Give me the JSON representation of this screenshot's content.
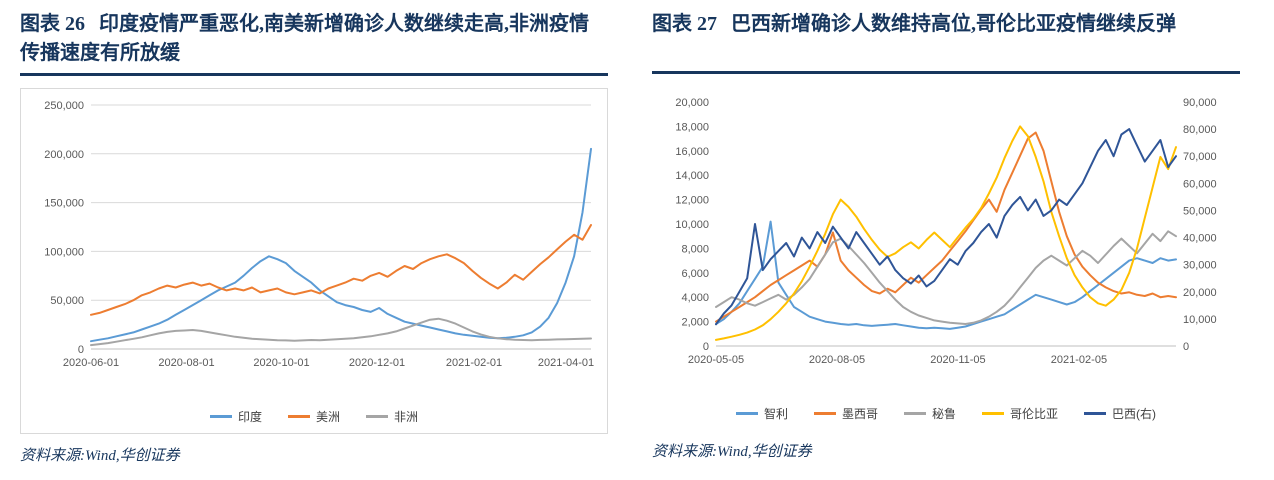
{
  "page": {
    "background": "#FFFFFF",
    "brand_color": "#17365D"
  },
  "panels": [
    {
      "figure_label": "图表 26",
      "title": "印度疫情严重恶化,南美新增确诊人数继续走高,非洲疫情传播速度有所放缓",
      "source": "资料来源:Wind,华创证券"
    },
    {
      "figure_label": "图表 27",
      "title": "巴西新增确诊人数维持高位,哥伦比亚疫情继续反弹",
      "source": "资料来源:Wind,华创证券"
    }
  ],
  "chart_data": [
    {
      "type": "line",
      "title": "图表 26 印度疫情严重恶化,南美新增确诊人数继续走高,非洲疫情传播速度有所放缓",
      "grid": true,
      "legend_position": "bottom",
      "ylim": [
        0,
        250000
      ],
      "y_ticks": [
        "0",
        "50,000",
        "100,000",
        "150,000",
        "200,000",
        "250,000"
      ],
      "x_ticks": [
        "2020-06-01",
        "2020-08-01",
        "2020-10-01",
        "2020-12-01",
        "2021-02-01",
        "2021-04-01"
      ],
      "x_tick_pos": [
        0,
        0.191,
        0.381,
        0.572,
        0.766,
        0.95
      ],
      "series": [
        {
          "name": "印度",
          "color": "#5B9BD5",
          "axis": "left",
          "values": [
            8000,
            9500,
            11000,
            13000,
            15000,
            17000,
            20000,
            23000,
            26000,
            30000,
            35000,
            40000,
            45000,
            50000,
            55000,
            60000,
            64000,
            68000,
            75000,
            83000,
            90000,
            95000,
            92000,
            88000,
            80000,
            74000,
            68000,
            60000,
            54000,
            48000,
            45000,
            43000,
            40000,
            38000,
            42000,
            36000,
            32000,
            28000,
            26000,
            24000,
            22000,
            20000,
            18000,
            16000,
            14500,
            13500,
            12500,
            11500,
            11000,
            11500,
            12500,
            14000,
            17000,
            23000,
            32000,
            47000,
            68000,
            95000,
            140000,
            205000
          ]
        },
        {
          "name": "美洲",
          "color": "#ED7D31",
          "axis": "left",
          "values": [
            35000,
            37000,
            40000,
            43000,
            46000,
            50000,
            55000,
            58000,
            62000,
            65000,
            63000,
            66000,
            68000,
            65000,
            67000,
            63000,
            60000,
            62000,
            60000,
            63000,
            58000,
            60000,
            62000,
            58000,
            56000,
            58000,
            60000,
            57000,
            62000,
            65000,
            68000,
            72000,
            70000,
            75000,
            78000,
            74000,
            80000,
            85000,
            82000,
            88000,
            92000,
            95000,
            97000,
            93000,
            88000,
            80000,
            73000,
            67000,
            62000,
            68000,
            76000,
            71000,
            79000,
            87000,
            94000,
            102000,
            110000,
            117000,
            112000,
            127000
          ]
        },
        {
          "name": "非洲",
          "color": "#A5A5A5",
          "axis": "left",
          "values": [
            4000,
            5000,
            6000,
            7500,
            9000,
            10500,
            12000,
            14000,
            16000,
            17500,
            18500,
            19000,
            19500,
            18500,
            17000,
            15500,
            14000,
            12500,
            11500,
            10500,
            10000,
            9500,
            9000,
            8800,
            8500,
            8800,
            9200,
            9000,
            9500,
            10000,
            10500,
            11000,
            12000,
            13000,
            14500,
            16000,
            18000,
            21000,
            24000,
            27000,
            30000,
            31000,
            29000,
            26000,
            22000,
            18000,
            15000,
            12500,
            11000,
            10000,
            9500,
            9200,
            9000,
            9300,
            9500,
            9800,
            10000,
            10200,
            10500,
            10800
          ]
        }
      ]
    },
    {
      "type": "line",
      "title": "图表 27 巴西新增确诊人数维持高位,哥伦比亚疫情继续反弹",
      "grid": false,
      "legend_position": "bottom",
      "ylim": [
        0,
        20000
      ],
      "y2lim": [
        0,
        90000
      ],
      "y_ticks": [
        "0",
        "2,000",
        "4,000",
        "6,000",
        "8,000",
        "10,000",
        "12,000",
        "14,000",
        "16,000",
        "18,000",
        "20,000"
      ],
      "y2_ticks": [
        "0",
        "10,000",
        "20,000",
        "30,000",
        "40,000",
        "50,000",
        "60,000",
        "70,000",
        "80,000",
        "90,000"
      ],
      "x_ticks": [
        "2020-05-05",
        "2020-08-05",
        "2020-11-05",
        "2021-02-05"
      ],
      "x_tick_pos": [
        0,
        0.263,
        0.526,
        0.789
      ],
      "series": [
        {
          "name": "智利",
          "color": "#5B9BD5",
          "axis": "left",
          "values": [
            1800,
            2200,
            2800,
            3500,
            4500,
            5500,
            6500,
            10200,
            5200,
            4200,
            3200,
            2800,
            2400,
            2200,
            2000,
            1900,
            1800,
            1750,
            1800,
            1700,
            1650,
            1700,
            1750,
            1800,
            1700,
            1600,
            1500,
            1450,
            1500,
            1450,
            1400,
            1500,
            1600,
            1800,
            2000,
            2200,
            2400,
            2600,
            3000,
            3400,
            3800,
            4200,
            4000,
            3800,
            3600,
            3400,
            3600,
            4000,
            4500,
            5000,
            5500,
            6000,
            6500,
            7000,
            7200,
            7000,
            6800,
            7200,
            7000,
            7100
          ]
        },
        {
          "name": "墨西哥",
          "color": "#ED7D31",
          "axis": "left",
          "values": [
            2000,
            2400,
            2800,
            3200,
            3600,
            4000,
            4500,
            5000,
            5400,
            5800,
            6200,
            6600,
            7000,
            6500,
            7500,
            9300,
            7000,
            6200,
            5600,
            5000,
            4500,
            4300,
            4700,
            4400,
            5000,
            5600,
            5200,
            5800,
            6400,
            7000,
            7800,
            8600,
            9400,
            10300,
            11200,
            12000,
            11000,
            12800,
            14200,
            15600,
            17000,
            17500,
            16000,
            13500,
            11000,
            9000,
            7500,
            6500,
            5800,
            5200,
            4800,
            4500,
            4300,
            4400,
            4200,
            4100,
            4300,
            4000,
            4100,
            4000
          ]
        },
        {
          "name": "秘鲁",
          "color": "#A5A5A5",
          "axis": "left",
          "values": [
            3200,
            3600,
            4000,
            3800,
            3500,
            3300,
            3600,
            3900,
            4200,
            3800,
            4200,
            4800,
            5500,
            6500,
            7500,
            8500,
            8800,
            8200,
            7500,
            6800,
            6000,
            5200,
            4500,
            3800,
            3200,
            2800,
            2500,
            2300,
            2100,
            2000,
            1900,
            1850,
            1800,
            1900,
            2100,
            2400,
            2800,
            3300,
            4000,
            4800,
            5600,
            6400,
            7000,
            7400,
            7000,
            6600,
            7200,
            7800,
            7400,
            6800,
            7500,
            8200,
            8800,
            8200,
            7600,
            8400,
            9200,
            8600,
            9400,
            9000
          ]
        },
        {
          "name": "哥伦比亚",
          "color": "#FFC000",
          "axis": "left",
          "values": [
            500,
            620,
            760,
            920,
            1100,
            1350,
            1700,
            2200,
            2800,
            3500,
            4300,
            5300,
            6500,
            7800,
            9200,
            10800,
            12000,
            11400,
            10600,
            9600,
            8700,
            7900,
            7300,
            7600,
            8100,
            8500,
            8000,
            8700,
            9300,
            8700,
            8100,
            8900,
            9700,
            10400,
            11300,
            12500,
            13800,
            15400,
            16800,
            18000,
            17200,
            15500,
            13500,
            11000,
            9000,
            7200,
            5800,
            4800,
            4000,
            3500,
            3300,
            3800,
            4600,
            6000,
            8000,
            10500,
            13000,
            15500,
            14500,
            16300
          ]
        },
        {
          "name": "巴西(右)",
          "color": "#2F5597",
          "axis": "right",
          "values": [
            8000,
            12000,
            15000,
            20000,
            25000,
            45000,
            28000,
            32000,
            35000,
            38000,
            33000,
            40000,
            36000,
            42000,
            38000,
            44000,
            40000,
            36000,
            42000,
            38000,
            34000,
            30000,
            33000,
            28000,
            25000,
            23000,
            26000,
            22000,
            24000,
            28000,
            32000,
            30000,
            35000,
            38000,
            42000,
            45000,
            40000,
            48000,
            52000,
            55000,
            50000,
            54000,
            48000,
            50000,
            54000,
            52000,
            56000,
            60000,
            66000,
            72000,
            76000,
            70000,
            78000,
            80000,
            74000,
            68000,
            72000,
            76000,
            66000,
            70000
          ]
        }
      ]
    }
  ]
}
